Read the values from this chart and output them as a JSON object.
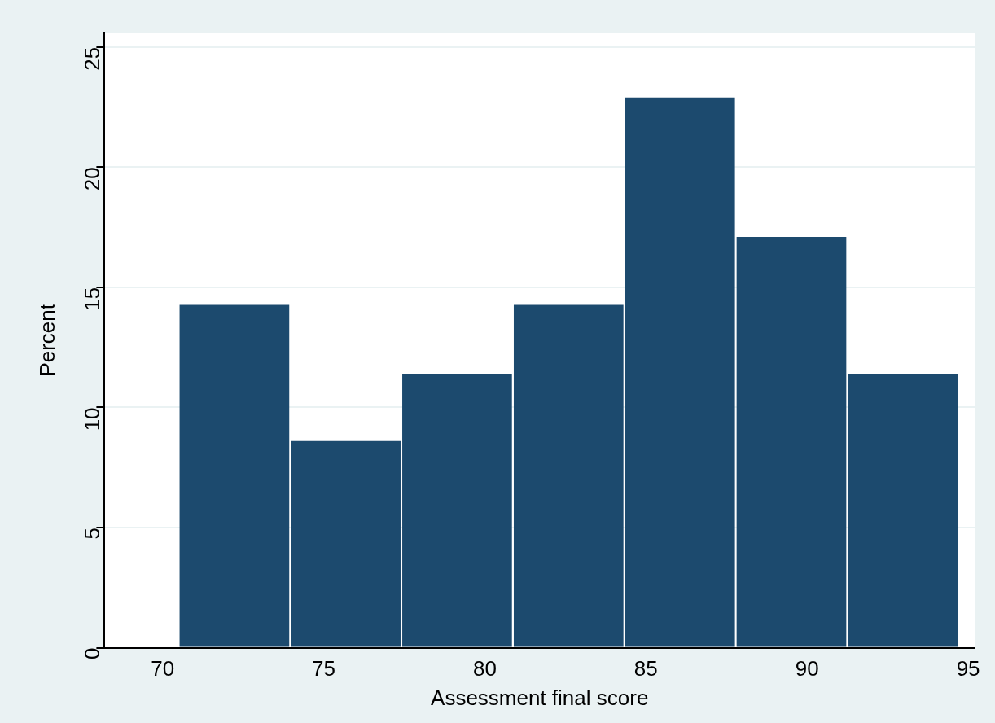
{
  "chart_data": {
    "type": "histogram",
    "xlabel": "Assessment final score",
    "ylabel": "Percent",
    "bins": [
      70.5,
      73.96,
      77.41,
      80.87,
      84.33,
      87.79,
      91.24,
      94.7
    ],
    "values": [
      14.3,
      8.6,
      11.4,
      14.3,
      22.9,
      17.1,
      11.4
    ],
    "color": "#1c4a6e",
    "xlim": [
      68.2,
      95.2
    ],
    "xticks": [
      70,
      75,
      80,
      85,
      90,
      95
    ],
    "ylim": [
      0,
      25.6
    ],
    "yticks": [
      0,
      5,
      10,
      15,
      20,
      25
    ],
    "grid": "y",
    "legend": false
  }
}
